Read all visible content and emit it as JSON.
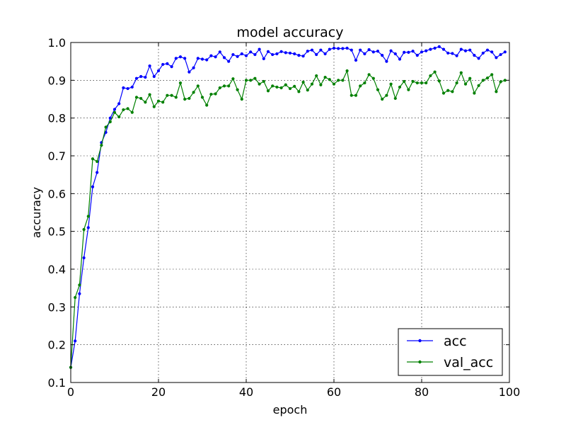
{
  "chart_data": {
    "type": "line",
    "title": "model accuracy",
    "xlabel": "epoch",
    "ylabel": "accuracy",
    "xlim": [
      0,
      100
    ],
    "ylim": [
      0.1,
      1.0
    ],
    "xticks": [
      0,
      20,
      40,
      60,
      80,
      100
    ],
    "yticks": [
      0.1,
      0.2,
      0.3,
      0.4,
      0.5,
      0.6,
      0.7,
      0.8,
      0.9,
      1.0
    ],
    "xtick_labels": [
      "0",
      "20",
      "40",
      "60",
      "80",
      "100"
    ],
    "ytick_labels": [
      "0.1",
      "0.2",
      "0.3",
      "0.4",
      "0.5",
      "0.6",
      "0.7",
      "0.8",
      "0.9",
      "1.0"
    ],
    "grid": true,
    "legend_position": "bottom-right",
    "series": [
      {
        "name": "acc",
        "color": "#0000ff",
        "values": [
          0.14,
          0.21,
          0.335,
          0.43,
          0.51,
          0.618,
          0.656,
          0.735,
          0.762,
          0.8,
          0.823,
          0.838,
          0.88,
          0.878,
          0.882,
          0.905,
          0.91,
          0.908,
          0.938,
          0.91,
          0.925,
          0.942,
          0.944,
          0.936,
          0.958,
          0.962,
          0.958,
          0.922,
          0.933,
          0.958,
          0.956,
          0.954,
          0.965,
          0.962,
          0.975,
          0.96,
          0.95,
          0.968,
          0.963,
          0.97,
          0.965,
          0.975,
          0.968,
          0.982,
          0.957,
          0.976,
          0.968,
          0.97,
          0.976,
          0.973,
          0.972,
          0.97,
          0.966,
          0.964,
          0.977,
          0.98,
          0.968,
          0.98,
          0.97,
          0.982,
          0.985,
          0.984,
          0.984,
          0.985,
          0.98,
          0.953,
          0.98,
          0.97,
          0.981,
          0.975,
          0.977,
          0.966,
          0.95,
          0.978,
          0.97,
          0.956,
          0.974,
          0.974,
          0.977,
          0.966,
          0.975,
          0.978,
          0.982,
          0.985,
          0.989,
          0.982,
          0.972,
          0.971,
          0.965,
          0.982,
          0.978,
          0.98,
          0.966,
          0.958,
          0.972,
          0.98,
          0.975,
          0.96,
          0.968,
          0.975
        ]
      },
      {
        "name": "val_acc",
        "color": "#008000",
        "values": [
          0.14,
          0.325,
          0.358,
          0.505,
          0.54,
          0.692,
          0.685,
          0.728,
          0.776,
          0.79,
          0.815,
          0.803,
          0.822,
          0.825,
          0.815,
          0.855,
          0.852,
          0.842,
          0.862,
          0.83,
          0.845,
          0.842,
          0.86,
          0.86,
          0.855,
          0.893,
          0.85,
          0.852,
          0.868,
          0.885,
          0.855,
          0.834,
          0.863,
          0.864,
          0.88,
          0.885,
          0.885,
          0.904,
          0.875,
          0.85,
          0.9,
          0.9,
          0.905,
          0.89,
          0.897,
          0.872,
          0.885,
          0.882,
          0.88,
          0.888,
          0.878,
          0.884,
          0.87,
          0.895,
          0.874,
          0.89,
          0.912,
          0.888,
          0.908,
          0.902,
          0.89,
          0.9,
          0.9,
          0.925,
          0.86,
          0.86,
          0.885,
          0.893,
          0.915,
          0.905,
          0.875,
          0.85,
          0.86,
          0.89,
          0.852,
          0.882,
          0.897,
          0.875,
          0.897,
          0.893,
          0.893,
          0.893,
          0.912,
          0.922,
          0.898,
          0.866,
          0.873,
          0.87,
          0.893,
          0.92,
          0.89,
          0.905,
          0.866,
          0.886,
          0.9,
          0.906,
          0.915,
          0.87,
          0.896,
          0.9
        ]
      }
    ]
  }
}
